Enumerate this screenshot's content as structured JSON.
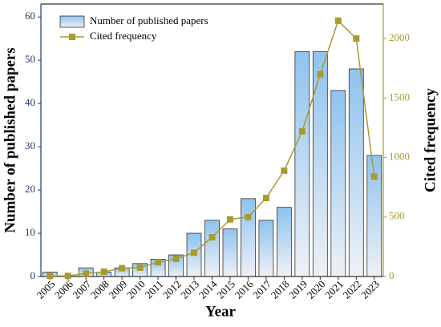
{
  "chart_data": {
    "type": "bar-line",
    "x_label": "Year",
    "y_label": "Number of published papers",
    "y2_label": "Cited frequency",
    "categories": [
      "2005",
      "2006",
      "2007",
      "2008",
      "2009",
      "2010",
      "2011",
      "2012",
      "2013",
      "2014",
      "2015",
      "2016",
      "2017",
      "2018",
      "2019",
      "2020",
      "2021",
      "2022",
      "2023"
    ],
    "series": [
      {
        "name": "Number of published papers",
        "type": "bar",
        "color": "#8fc3ee",
        "values": [
          1,
          0,
          2,
          1,
          2,
          3,
          4,
          5,
          10,
          13,
          11,
          18,
          13,
          16,
          52,
          52,
          43,
          48,
          28
        ]
      },
      {
        "name": "Cited frequency",
        "type": "line",
        "axis": "y2",
        "color": "#a99a2e",
        "values": [
          5,
          5,
          25,
          40,
          70,
          75,
          120,
          150,
          200,
          330,
          480,
          500,
          660,
          890,
          1220,
          1700,
          2150,
          2000,
          840
        ]
      }
    ],
    "ylim": [
      0,
      63
    ],
    "yticks": [
      0,
      10,
      20,
      30,
      40,
      50,
      60
    ],
    "y2lim": [
      0,
      2290
    ],
    "y2ticks": [
      0,
      500,
      1000,
      1500,
      2000
    ],
    "legend": "upper left"
  }
}
